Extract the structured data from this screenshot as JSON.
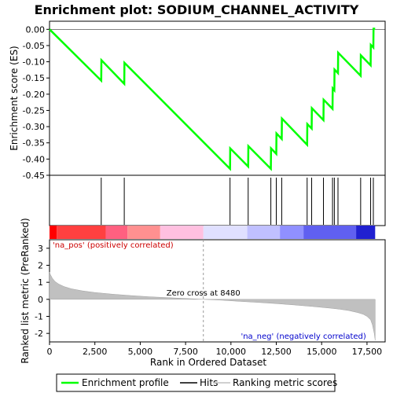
{
  "chart_data": {
    "type": "line",
    "title": "Enrichment plot: SODIUM_CHANNEL_ACTIVITY",
    "top_panel": {
      "ylabel": "Enrichment score (ES)",
      "ylim": [
        -0.45,
        0.025
      ],
      "yticks": [
        0.0,
        -0.05,
        -0.1,
        -0.15,
        -0.2,
        -0.25,
        -0.3,
        -0.35,
        -0.4,
        -0.45
      ],
      "ytick_labels": [
        "0.00",
        "-0.05",
        "-0.10",
        "-0.15",
        "-0.20",
        "-0.25",
        "-0.30",
        "-0.35",
        "-0.40",
        "-0.45"
      ],
      "series": [
        {
          "name": "Enrichment profile",
          "color": "#00ff00",
          "x": [
            0,
            2850,
            2860,
            4120,
            4130,
            9950,
            9960,
            10950,
            10960,
            12200,
            12210,
            12500,
            12510,
            12800,
            12810,
            14200,
            14210,
            14450,
            14460,
            15100,
            15110,
            15600,
            15610,
            15700,
            15710,
            15900,
            15910,
            17150,
            17160,
            17700,
            17710,
            17850,
            17860,
            17950
          ],
          "y": [
            0.0,
            -0.158,
            -0.095,
            -0.168,
            -0.103,
            -0.43,
            -0.367,
            -0.423,
            -0.36,
            -0.43,
            -0.367,
            -0.384,
            -0.321,
            -0.338,
            -0.275,
            -0.356,
            -0.292,
            -0.306,
            -0.243,
            -0.28,
            -0.217,
            -0.245,
            -0.182,
            -0.188,
            -0.124,
            -0.135,
            -0.072,
            -0.143,
            -0.08,
            -0.111,
            -0.048,
            -0.056,
            0.002,
            0.002
          ]
        }
      ]
    },
    "hits": {
      "name": "Hits",
      "color": "#000000",
      "x": [
        2850,
        4120,
        9950,
        10950,
        12200,
        12500,
        12800,
        14200,
        14450,
        15100,
        15600,
        15700,
        15900,
        17150,
        17700,
        17850
      ]
    },
    "bottom_panel": {
      "ylabel": "Ranked list metric (PreRanked)",
      "xlabel": "Rank in Ordered Dataset",
      "xlim": [
        0,
        18500
      ],
      "ylim": [
        -2.5,
        3.5
      ],
      "xticks": [
        0,
        2500,
        5000,
        7500,
        10000,
        12500,
        15000,
        17500
      ],
      "xtick_labels": [
        "0",
        "2,500",
        "5,000",
        "7,500",
        "10,000",
        "12,500",
        "15,000",
        "17,500"
      ],
      "yticks": [
        3,
        2,
        1,
        0,
        -1,
        -2
      ],
      "ytick_labels": [
        "3",
        "2",
        "1",
        "0",
        "-1",
        "-2"
      ],
      "series": [
        {
          "name": "Ranking metric scores",
          "color": "#c0c0c0",
          "x": [
            0,
            50,
            150,
            300,
            500,
            800,
            1200,
            1800,
            2500,
            3500,
            4500,
            5500,
            6500,
            7500,
            8480,
            9500,
            10500,
            11500,
            12500,
            13500,
            14500,
            15500,
            16000,
            16500,
            17000,
            17300,
            17500,
            17700,
            17800,
            17900,
            17950
          ],
          "y": [
            1.6,
            1.45,
            1.25,
            1.05,
            0.9,
            0.75,
            0.62,
            0.5,
            0.4,
            0.3,
            0.22,
            0.15,
            0.1,
            0.05,
            0.0,
            -0.05,
            -0.12,
            -0.18,
            -0.25,
            -0.33,
            -0.42,
            -0.52,
            -0.58,
            -0.66,
            -0.78,
            -0.88,
            -1.0,
            -1.2,
            -1.5,
            -2.0,
            -2.4
          ]
        }
      ],
      "zero_cross_label": "Zero cross at 8480",
      "zero_cross_x": 8480,
      "pos_label": "'na_pos' (positively correlated)",
      "neg_label": "'na_neg' (negatively correlated)",
      "pos_color": "#cc0000",
      "neg_color": "#0000cc"
    },
    "heat_bar": {
      "segments": [
        {
          "x0": 0,
          "x1": 400,
          "color": "#ff0000"
        },
        {
          "x0": 400,
          "x1": 3100,
          "color": "#ff4040"
        },
        {
          "x0": 3100,
          "x1": 4300,
          "color": "#ff6080"
        },
        {
          "x0": 4300,
          "x1": 6100,
          "color": "#ff9090"
        },
        {
          "x0": 6100,
          "x1": 8480,
          "color": "#ffc0e0"
        },
        {
          "x0": 8480,
          "x1": 10900,
          "color": "#e0e0ff"
        },
        {
          "x0": 10900,
          "x1": 12700,
          "color": "#c0c0ff"
        },
        {
          "x0": 12700,
          "x1": 14000,
          "color": "#9090ff"
        },
        {
          "x0": 14000,
          "x1": 16900,
          "color": "#6060f0"
        },
        {
          "x0": 16900,
          "x1": 17950,
          "color": "#2020d0"
        }
      ]
    },
    "legend": {
      "items": [
        {
          "label": "Enrichment profile",
          "color": "#00ff00"
        },
        {
          "label": "Hits",
          "color": "#000000"
        },
        {
          "label": "Ranking metric scores",
          "color": "#c0c0c0"
        }
      ]
    }
  }
}
